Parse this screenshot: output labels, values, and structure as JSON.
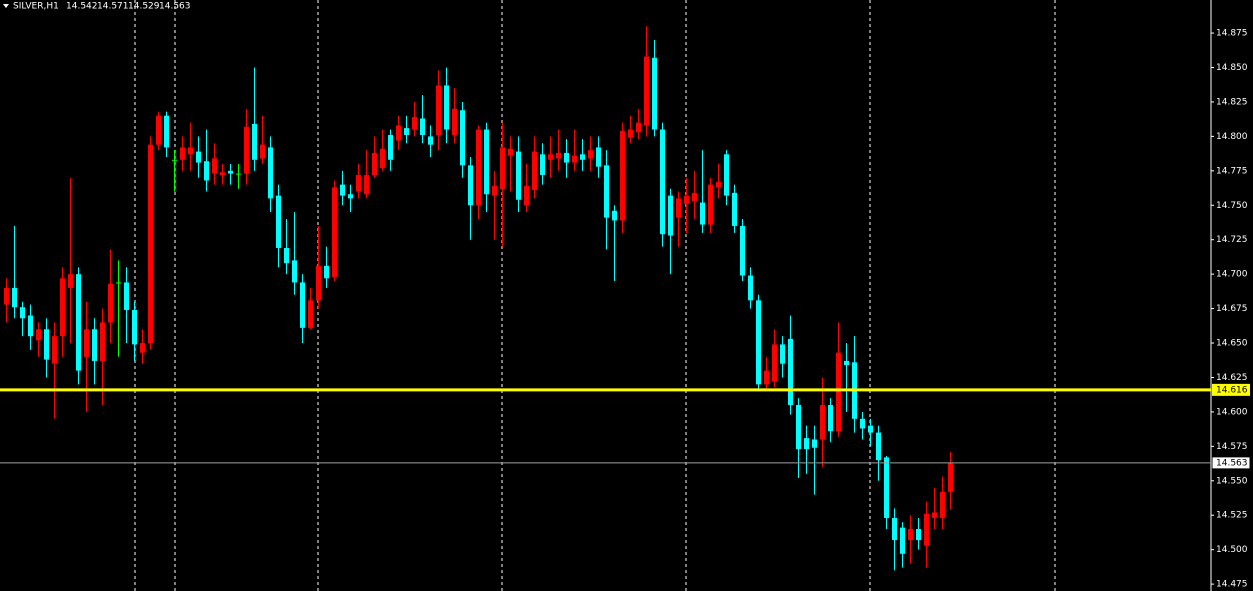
{
  "header": {
    "symbol": "SILVER,H1"
  },
  "chart_data": {
    "type": "candlestick",
    "ylim": [
      14.47,
      14.899
    ],
    "yticks": [
      14.475,
      {
        "value": 14.5,
        "label": "14.500"
      },
      14.525,
      {
        "value": 14.55,
        "label": "14.550"
      },
      14.575,
      {
        "value": 14.6,
        "label": "14.600"
      },
      14.625,
      {
        "value": 14.65,
        "label": "14.650"
      },
      14.675,
      {
        "value": 14.7,
        "label": "14.700"
      },
      14.725,
      {
        "value": 14.75,
        "label": "14.750"
      },
      14.775,
      {
        "value": 14.8,
        "label": "14.800"
      },
      14.825,
      {
        "value": 14.85,
        "label": "14.850"
      },
      14.875
    ],
    "up_color": "#ff0000",
    "down_color": "#00ffff",
    "doji_color": "#00ff00",
    "hlines": [
      {
        "value": 14.616,
        "color": "#ffff00"
      },
      {
        "value": 14.563,
        "color": "#a0a0a0"
      }
    ],
    "open": [
      14.678,
      14.69,
      14.676,
      14.67,
      14.652,
      14.66,
      14.635,
      14.655,
      14.69,
      14.7,
      14.64,
      14.66,
      14.637,
      14.665,
      14.694,
      14.694,
      14.674,
      14.643,
      14.65,
      14.794,
      14.815,
      14.783,
      14.783,
      14.787,
      14.789,
      14.782,
      14.773,
      14.772,
      14.775,
      14.773,
      14.773,
      14.809,
      14.784,
      14.792,
      14.757,
      14.719,
      14.71,
      14.694,
      14.661,
      14.681,
      14.706,
      14.698,
      14.765,
      14.758,
      14.76,
      14.758,
      14.772,
      14.777,
      14.801,
      14.797,
      14.806,
      14.805,
      14.813,
      14.8,
      14.801,
      14.837,
      14.801,
      14.819,
      14.779,
      14.75,
      14.805,
      14.757,
      14.762,
      14.786,
      14.789,
      14.75,
      14.761,
      14.787,
      14.783,
      14.784,
      14.788,
      14.781,
      14.787,
      14.784,
      14.792,
      14.779,
      14.746,
      14.739,
      14.799,
      14.803,
      14.808,
      14.857,
      14.805,
      14.757,
      14.741,
      14.751,
      14.753,
      14.752,
      14.736,
      14.763,
      14.787,
      14.759,
      14.735,
      14.699,
      14.681,
      14.62,
      14.622,
      14.649,
      14.653,
      14.605,
      14.581,
      14.58,
      14.58,
      14.605,
      14.586,
      14.637,
      14.636,
      14.595,
      14.59,
      14.585,
      14.567,
      14.523,
      14.516,
      14.507,
      14.515,
      14.503,
      14.523,
      14.523,
      14.542
    ],
    "high": [
      14.697,
      14.735,
      14.68,
      14.678,
      14.665,
      14.668,
      14.665,
      14.705,
      14.77,
      14.705,
      14.68,
      14.668,
      14.675,
      14.718,
      14.71,
      14.705,
      14.68,
      14.66,
      14.8,
      14.818,
      14.818,
      14.79,
      14.8,
      14.81,
      14.8,
      14.805,
      14.795,
      14.78,
      14.78,
      14.78,
      14.82,
      14.85,
      14.815,
      14.8,
      14.765,
      14.74,
      14.745,
      14.7,
      14.69,
      14.735,
      14.72,
      14.768,
      14.775,
      14.765,
      14.78,
      14.79,
      14.8,
      14.805,
      14.805,
      14.815,
      14.815,
      14.825,
      14.83,
      14.808,
      14.848,
      14.85,
      14.835,
      14.825,
      14.785,
      14.808,
      14.81,
      14.775,
      14.81,
      14.8,
      14.8,
      14.78,
      14.8,
      14.795,
      14.8,
      14.805,
      14.798,
      14.805,
      14.798,
      14.8,
      14.8,
      14.79,
      14.75,
      14.81,
      14.815,
      14.82,
      14.88,
      14.87,
      14.81,
      14.762,
      14.76,
      14.77,
      14.775,
      14.79,
      14.77,
      14.78,
      14.79,
      14.765,
      14.74,
      14.705,
      14.685,
      14.64,
      14.66,
      14.655,
      14.67,
      14.61,
      14.59,
      14.59,
      14.625,
      14.61,
      14.665,
      14.65,
      14.655,
      14.6,
      14.595,
      14.59,
      14.568,
      14.53,
      14.52,
      14.525,
      14.523,
      14.535,
      14.545,
      14.553,
      14.571
    ],
    "low": [
      14.665,
      14.668,
      14.655,
      14.645,
      14.64,
      14.625,
      14.595,
      14.64,
      14.65,
      14.62,
      14.6,
      14.62,
      14.605,
      14.65,
      14.64,
      14.65,
      14.637,
      14.635,
      14.645,
      14.79,
      14.785,
      14.76,
      14.775,
      14.775,
      14.77,
      14.76,
      14.765,
      14.765,
      14.765,
      14.762,
      14.765,
      14.775,
      14.78,
      14.745,
      14.705,
      14.7,
      14.685,
      14.65,
      14.66,
      14.675,
      14.69,
      14.695,
      14.75,
      14.745,
      14.755,
      14.755,
      14.77,
      14.775,
      14.775,
      14.79,
      14.795,
      14.8,
      14.795,
      14.785,
      14.79,
      14.795,
      14.795,
      14.77,
      14.725,
      14.74,
      14.745,
      14.725,
      14.72,
      14.76,
      14.745,
      14.745,
      14.755,
      14.765,
      14.77,
      14.775,
      14.77,
      14.775,
      14.775,
      14.775,
      14.77,
      14.718,
      14.695,
      14.73,
      14.795,
      14.798,
      14.8,
      14.8,
      14.72,
      14.7,
      14.72,
      14.73,
      14.74,
      14.73,
      14.73,
      14.755,
      14.75,
      14.73,
      14.695,
      14.675,
      14.615,
      14.615,
      14.618,
      14.625,
      14.598,
      14.552,
      14.555,
      14.54,
      14.56,
      14.578,
      14.582,
      14.6,
      14.585,
      14.58,
      14.575,
      14.55,
      14.515,
      14.485,
      14.487,
      14.49,
      14.5,
      14.487,
      14.515,
      14.515,
      14.529
    ],
    "close": [
      14.69,
      14.676,
      14.668,
      14.655,
      14.66,
      14.638,
      14.655,
      14.697,
      14.7,
      14.63,
      14.66,
      14.637,
      14.665,
      14.693,
      14.694,
      14.674,
      14.649,
      14.65,
      14.794,
      14.815,
      14.792,
      14.783,
      14.792,
      14.792,
      14.781,
      14.768,
      14.784,
      14.774,
      14.773,
      14.773,
      14.807,
      14.783,
      14.794,
      14.755,
      14.719,
      14.708,
      14.694,
      14.661,
      14.681,
      14.706,
      14.697,
      14.763,
      14.757,
      14.755,
      14.772,
      14.772,
      14.788,
      14.791,
      14.783,
      14.808,
      14.801,
      14.814,
      14.801,
      14.794,
      14.837,
      14.805,
      14.82,
      14.779,
      14.75,
      14.805,
      14.758,
      14.764,
      14.792,
      14.791,
      14.754,
      14.764,
      14.789,
      14.772,
      14.787,
      14.788,
      14.781,
      14.786,
      14.783,
      14.79,
      14.778,
      14.741,
      14.739,
      14.804,
      14.805,
      14.81,
      14.858,
      14.805,
      14.729,
      14.728,
      14.755,
      14.757,
      14.759,
      14.736,
      14.765,
      14.767,
      14.757,
      14.735,
      14.699,
      14.681,
      14.62,
      14.63,
      14.649,
      14.635,
      14.605,
      14.573,
      14.573,
      14.574,
      14.605,
      14.586,
      14.643,
      14.634,
      14.595,
      14.588,
      14.585,
      14.565,
      14.523,
      14.507,
      14.497,
      14.515,
      14.507,
      14.526,
      14.527,
      14.542,
      14.563
    ]
  }
}
